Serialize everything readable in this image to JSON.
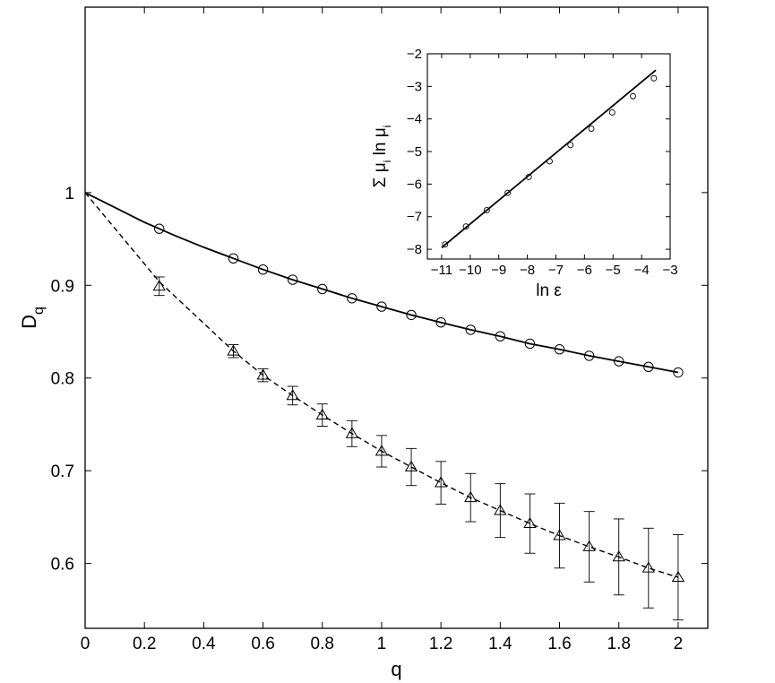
{
  "colors": {
    "line": "#000000",
    "marker_edge": "#000000",
    "background": "#ffffff"
  },
  "chart_data": [
    {
      "id": "main",
      "type": "line",
      "xlabel": "q",
      "ylabel": "D",
      "ylabel_subscript": "q",
      "xlim": [
        0,
        2.1
      ],
      "ylim": [
        0.53,
        1.2
      ],
      "xticks": [
        0,
        0.2,
        0.4,
        0.6,
        0.8,
        1,
        1.2,
        1.4,
        1.6,
        1.8,
        2
      ],
      "xtick_labels": [
        "0",
        "0.2",
        "0.4",
        "0.6",
        "0.8",
        "1",
        "1.2",
        "1.4",
        "1.6",
        "1.8",
        "2"
      ],
      "yticks": [
        0.6,
        0.7,
        0.8,
        0.9,
        1
      ],
      "ytick_labels": [
        "0.6",
        "0.7",
        "0.8",
        "0.9",
        "1"
      ],
      "grid": false,
      "series": [
        {
          "style": "solid-line",
          "marker": "circle",
          "x": [
            0.25,
            0.5,
            0.6,
            0.7,
            0.8,
            0.9,
            1.0,
            1.1,
            1.2,
            1.3,
            1.4,
            1.5,
            1.6,
            1.7,
            1.8,
            1.9,
            2.0
          ],
          "y": [
            0.961,
            0.929,
            0.917,
            0.906,
            0.896,
            0.886,
            0.877,
            0.868,
            0.86,
            0.852,
            0.845,
            0.837,
            0.831,
            0.824,
            0.818,
            0.812,
            0.806
          ],
          "curve": {
            "x": [
              0,
              0.1,
              0.2,
              0.3,
              0.4,
              0.5,
              0.6,
              0.7,
              0.8,
              0.9,
              1.0,
              1.1,
              1.2,
              1.3,
              1.4,
              1.5,
              1.6,
              1.7,
              1.8,
              1.9,
              2.0
            ],
            "y": [
              1.0,
              0.984,
              0.968,
              0.954,
              0.941,
              0.929,
              0.917,
              0.906,
              0.896,
              0.886,
              0.877,
              0.868,
              0.86,
              0.852,
              0.845,
              0.837,
              0.831,
              0.824,
              0.818,
              0.812,
              0.806
            ]
          }
        },
        {
          "style": "dashed-line",
          "marker": "triangle",
          "x": [
            0.25,
            0.5,
            0.6,
            0.7,
            0.8,
            0.9,
            1.0,
            1.1,
            1.2,
            1.3,
            1.4,
            1.5,
            1.6,
            1.7,
            1.8,
            1.9,
            2.0
          ],
          "y": [
            0.899,
            0.829,
            0.803,
            0.781,
            0.76,
            0.74,
            0.721,
            0.704,
            0.687,
            0.671,
            0.657,
            0.643,
            0.63,
            0.618,
            0.607,
            0.595,
            0.585
          ],
          "yerr": [
            0.01,
            0.007,
            0.007,
            0.01,
            0.012,
            0.014,
            0.017,
            0.02,
            0.023,
            0.026,
            0.029,
            0.032,
            0.035,
            0.038,
            0.041,
            0.043,
            0.046
          ],
          "curve": {
            "x": [
              0,
              0.25,
              0.5,
              0.6,
              0.7,
              0.8,
              0.9,
              1.0,
              1.1,
              1.2,
              1.3,
              1.4,
              1.5,
              1.6,
              1.7,
              1.8,
              1.9,
              2.0
            ],
            "y": [
              1.0,
              0.904,
              0.829,
              0.803,
              0.781,
              0.76,
              0.74,
              0.721,
              0.704,
              0.687,
              0.671,
              0.657,
              0.643,
              0.63,
              0.618,
              0.607,
              0.595,
              0.585
            ]
          }
        }
      ]
    },
    {
      "id": "inset",
      "type": "line",
      "xlabel": "ln ε",
      "ylabel": "Σ μ",
      "ylabel_subscript_1": "i",
      "ylabel_mid": " ln μ",
      "ylabel_subscript_2": "i",
      "xlim": [
        -11.5,
        -3
      ],
      "ylim": [
        -8.3,
        -2
      ],
      "xticks": [
        -11,
        -10,
        -9,
        -8,
        -7,
        -6,
        -5,
        -4,
        -3
      ],
      "xtick_labels": [
        "−11",
        "−10",
        "−9",
        "−8",
        "−7",
        "−6",
        "−5",
        "−4",
        "−3"
      ],
      "yticks": [
        -8,
        -7,
        -6,
        -5,
        -4,
        -3,
        -2
      ],
      "ytick_labels": [
        "−8",
        "−7",
        "−6",
        "−5",
        "−4",
        "−3",
        "−2"
      ],
      "grid": false,
      "series": [
        {
          "style": "solid-line",
          "marker": "small-circle",
          "fit_line": {
            "x": [
              -11,
              -3.5
            ],
            "y": [
              -7.95,
              -2.5
            ]
          },
          "x": [
            -10.88,
            -10.15,
            -9.42,
            -8.69,
            -7.95,
            -7.22,
            -6.49,
            -5.76,
            -5.03,
            -4.3,
            -3.57
          ],
          "y": [
            -7.85,
            -7.3,
            -6.8,
            -6.27,
            -5.78,
            -5.3,
            -4.8,
            -4.3,
            -3.8,
            -3.3,
            -2.75
          ]
        }
      ]
    }
  ]
}
